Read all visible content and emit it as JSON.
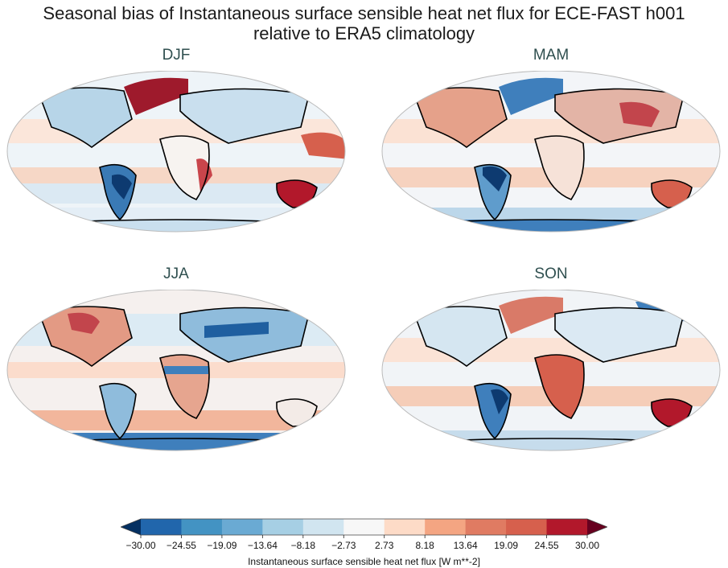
{
  "title_line1": "Seasonal bias of Instantaneous surface sensible heat net flux for ECE-FAST h001",
  "title_line2": "relative to ERA5 climatology",
  "panels": [
    {
      "id": "djf",
      "label": "DJF"
    },
    {
      "id": "mam",
      "label": "MAM"
    },
    {
      "id": "jja",
      "label": "JJA"
    },
    {
      "id": "son",
      "label": "SON"
    }
  ],
  "colorbar": {
    "label": "Instantaneous surface sensible heat net flux [W m**-2]",
    "ticks": [
      "−30.00",
      "−24.55",
      "−19.09",
      "−13.64",
      "−8.18",
      "−2.73",
      "2.73",
      "8.18",
      "13.64",
      "19.09",
      "24.55",
      "30.00"
    ],
    "colors": [
      "#053061",
      "#2166ac",
      "#4393c3",
      "#6aaad3",
      "#a6cfe4",
      "#d1e5f0",
      "#f7f7f7",
      "#fddbc7",
      "#f4a582",
      "#e07b62",
      "#d6604d",
      "#b2182b",
      "#67001f"
    ],
    "extend": "both"
  }
}
